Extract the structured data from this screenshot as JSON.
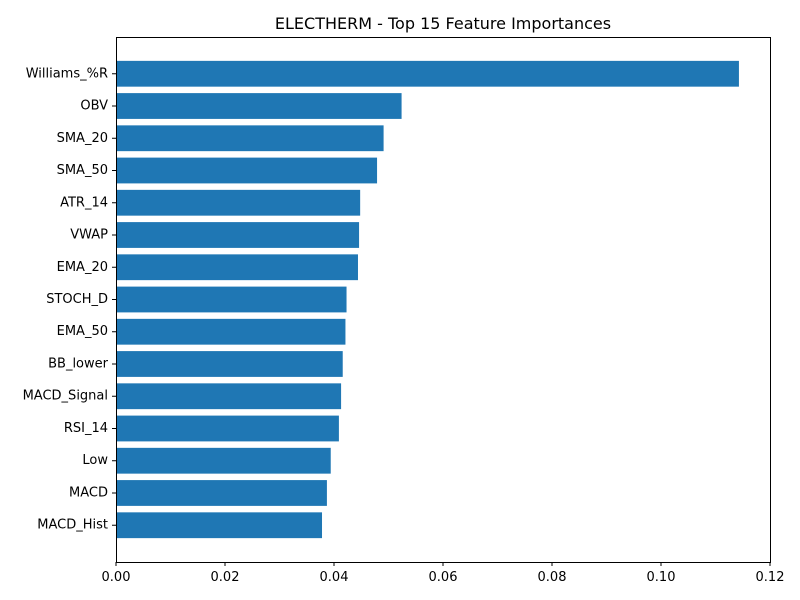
{
  "chart_data": {
    "type": "bar",
    "orientation": "horizontal",
    "title": "ELECTHERM - Top 15 Feature Importances",
    "xlabel": "",
    "ylabel": "",
    "categories": [
      "Williams_%R",
      "OBV",
      "SMA_20",
      "SMA_50",
      "ATR_14",
      "VWAP",
      "EMA_20",
      "STOCH_D",
      "EMA_50",
      "BB_lower",
      "MACD_Signal",
      "RSI_14",
      "Low",
      "MACD",
      "MACD_Hist"
    ],
    "values": [
      0.1143,
      0.0524,
      0.0491,
      0.0479,
      0.0448,
      0.0446,
      0.0444,
      0.0423,
      0.0421,
      0.0416,
      0.0413,
      0.0409,
      0.0394,
      0.0387,
      0.0378
    ],
    "xlim": [
      0.0,
      0.12
    ],
    "xticks": [
      "0.00",
      "0.02",
      "0.04",
      "0.06",
      "0.08",
      "0.10",
      "0.12"
    ],
    "bar_color": "#1f77b4",
    "grid": false,
    "legend": "none"
  }
}
